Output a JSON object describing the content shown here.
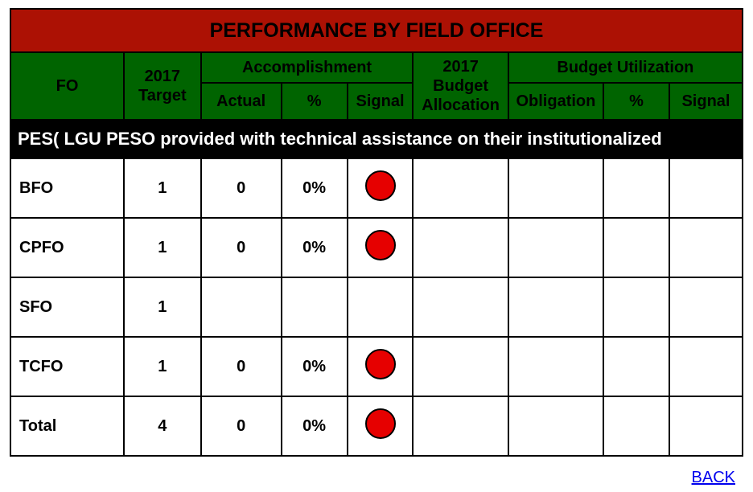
{
  "title": "PERFORMANCE BY FIELD OFFICE",
  "colors": {
    "title_bg": "#ac1104",
    "header_bg": "#006400",
    "section_bg": "#000000",
    "section_fg": "#ffffff",
    "signal_red": "#e60000",
    "border": "#000000",
    "link": "#0000ee"
  },
  "headers": {
    "fo": "FO",
    "target": "2017 Target",
    "accomplishment_group": "Accomplishment",
    "actual": "Actual",
    "pct": "%",
    "signal": "Signal",
    "budget_alloc": "2017 Budget Allocation",
    "budget_util_group": "Budget Utilization",
    "obligation": "Obligation",
    "pct2": "%",
    "signal2": "Signal"
  },
  "section_label": "PES( LGU PESO provided with technical assistance on their institutionalized",
  "rows": [
    {
      "fo": "BFO",
      "target": "1",
      "actual": "0",
      "pct": "0%",
      "signal_color": "#e60000",
      "alloc": "",
      "oblig": "",
      "pct2": "",
      "signal2_color": ""
    },
    {
      "fo": "CPFO",
      "target": "1",
      "actual": "0",
      "pct": "0%",
      "signal_color": "#e60000",
      "alloc": "",
      "oblig": "",
      "pct2": "",
      "signal2_color": ""
    },
    {
      "fo": "SFO",
      "target": "1",
      "actual": "",
      "pct": "",
      "signal_color": "",
      "alloc": "",
      "oblig": "",
      "pct2": "",
      "signal2_color": ""
    },
    {
      "fo": "TCFO",
      "target": "1",
      "actual": "0",
      "pct": "0%",
      "signal_color": "#e60000",
      "alloc": "",
      "oblig": "",
      "pct2": "",
      "signal2_color": ""
    },
    {
      "fo": "Total",
      "target": "4",
      "actual": "0",
      "pct": "0%",
      "signal_color": "#e60000",
      "alloc": "",
      "oblig": "",
      "pct2": "",
      "signal2_color": ""
    }
  ],
  "back_link": "BACK"
}
